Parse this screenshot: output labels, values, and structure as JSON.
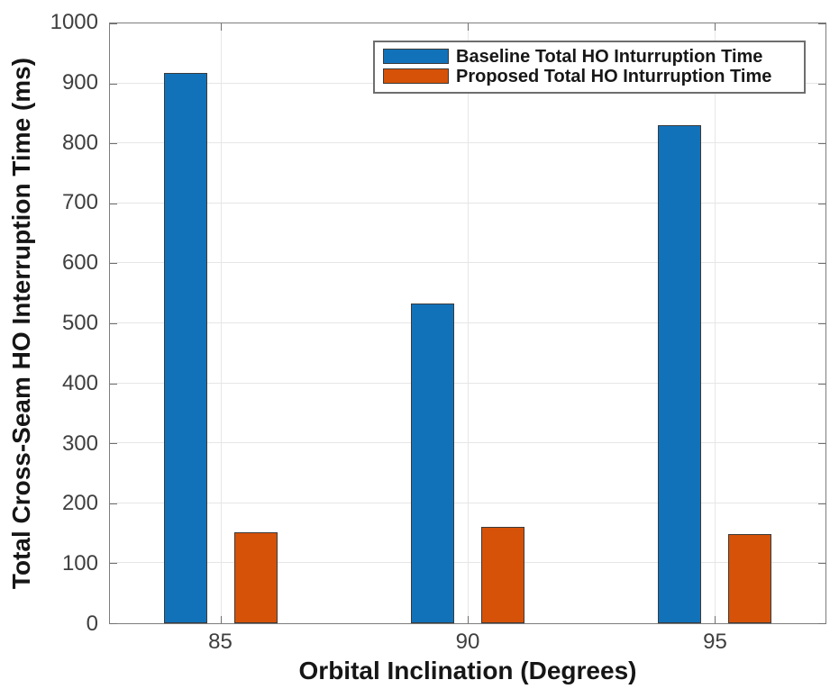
{
  "chart_data": {
    "type": "bar",
    "categories": [
      85,
      90,
      95
    ],
    "series": [
      {
        "name": "Baseline Total HO Inturruption Time",
        "color": "#1272b9",
        "values": [
          918,
          533,
          830
        ]
      },
      {
        "name": "Proposed Total HO Inturruption Time",
        "color": "#d65208",
        "values": [
          151,
          160,
          149
        ]
      }
    ],
    "title": "",
    "xlabel": "Orbital Inclination (Degrees)",
    "ylabel": "Total Cross-Seam HO Interruption Time (ms)",
    "xlim": [
      82.75,
      97.25
    ],
    "ylim": [
      0,
      1000
    ],
    "xticks": [
      85,
      90,
      95
    ],
    "yticks": [
      0,
      100,
      200,
      300,
      400,
      500,
      600,
      700,
      800,
      900,
      1000
    ],
    "grid": true,
    "axes_box": true,
    "tick_direction": "in",
    "legend_position": "north",
    "bar_edge_color": "#3a3a3a",
    "bar_width_units": 0.88,
    "bar_offset_units": 0.71,
    "grid_color": "#e6e6e6",
    "axis_color": "#7d7d7d"
  }
}
